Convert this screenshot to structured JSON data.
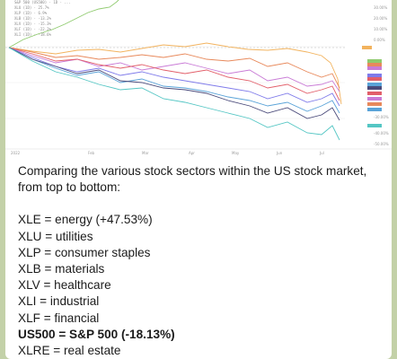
{
  "message": {
    "intro": "Comparing the various stock sectors within the US stock market, from top to bottom:",
    "lines": [
      {
        "text": "XLE = energy (+47.53%)",
        "bold": false
      },
      {
        "text": "XLU = utilities",
        "bold": false
      },
      {
        "text": "XLP = consumer staples",
        "bold": false
      },
      {
        "text": "XLB = materials",
        "bold": false
      },
      {
        "text": "XLV = healthcare",
        "bold": false
      },
      {
        "text": "XLI = industrial",
        "bold": false
      },
      {
        "text": "XLF = financial",
        "bold": false
      },
      {
        "text": "US500 = S&P 500 (-18.13%)",
        "bold": true
      },
      {
        "text": "XLRE = real estate",
        "bold": false
      }
    ]
  },
  "chart": {
    "x_labels": [
      "2022",
      "Feb",
      "Mar",
      "Apr",
      "May",
      "Jun",
      "Jul"
    ],
    "colors": {
      "energy": "#8fca6e",
      "utilities": "#f2b35e",
      "staples": "#e8895b",
      "materials": "#c97bd6",
      "healthcare": "#e25f6a",
      "industrial": "#7f7bea",
      "financial": "#5aa3d8",
      "sp500": "#4a4a7a",
      "real_estate": "#54c6c4"
    }
  }
}
